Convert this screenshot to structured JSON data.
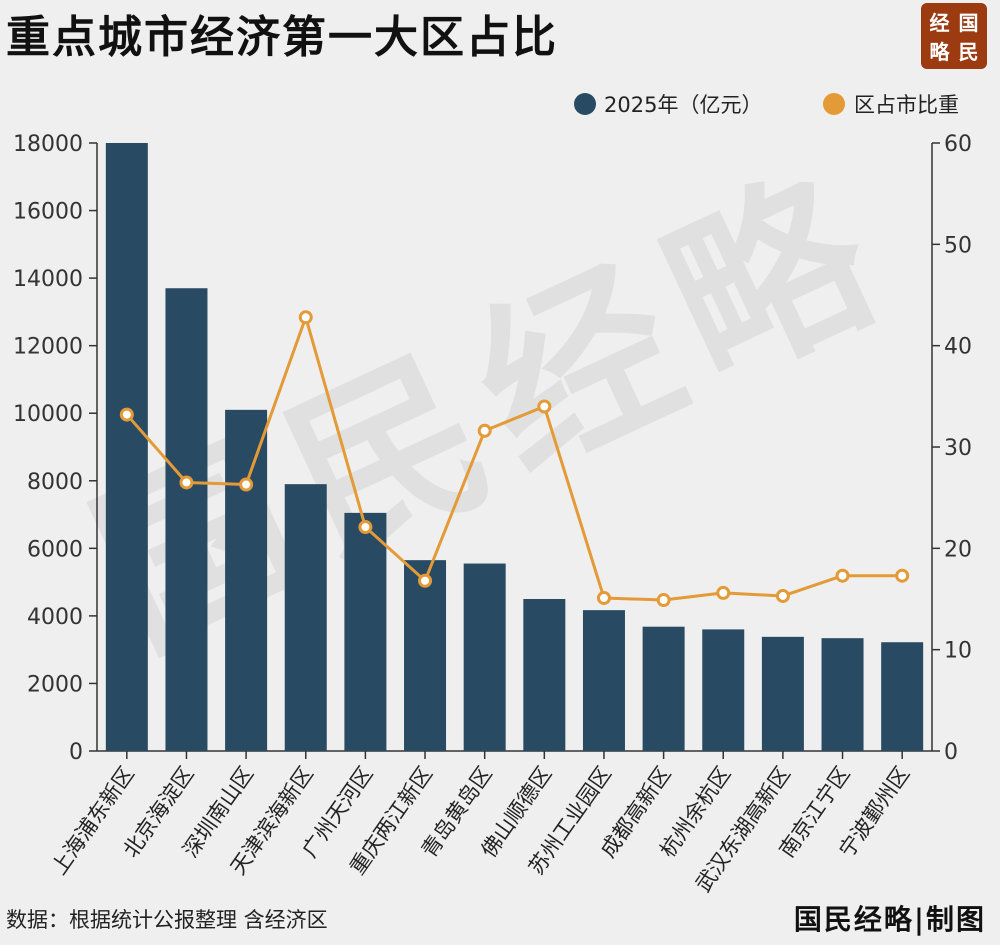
{
  "title": "重点城市经济第一大区占比",
  "logo_chars": [
    "经",
    "国",
    "略",
    "民"
  ],
  "source_note": "数据：根据统计公报整理 含经济区",
  "credit": "国民经略|制图",
  "watermark": "国民经略",
  "colors": {
    "bar": "#284a62",
    "line": "#e39a37",
    "point_fill": "#ffffff",
    "axis": "#333333",
    "logo_bg": "#9c3a12"
  },
  "chart_data": {
    "type": "bar",
    "categories": [
      "上海浦东新区",
      "北京海淀区",
      "深圳南山区",
      "天津滨海新区",
      "广州天河区",
      "重庆两江新区",
      "青岛黄岛区",
      "佛山顺德区",
      "苏州工业园区",
      "成都高新区",
      "杭州余杭区",
      "武汉东湖高新区",
      "南京江宁区",
      "宁波鄞州区"
    ],
    "series": [
      {
        "name": "2025年（亿元）",
        "type": "bar",
        "axis": "left",
        "values": [
          18000,
          13700,
          10100,
          7900,
          7050,
          5650,
          5550,
          4500,
          4170,
          3680,
          3600,
          3380,
          3340,
          3220
        ]
      },
      {
        "name": "区占市比重",
        "type": "line",
        "axis": "right",
        "values": [
          33.2,
          26.5,
          26.3,
          42.8,
          22.1,
          16.8,
          31.6,
          34.0,
          15.1,
          14.9,
          15.6,
          15.3,
          17.3,
          17.3
        ]
      }
    ],
    "ylim_left": [
      0,
      18000
    ],
    "yticks_left": [
      0,
      2000,
      4000,
      6000,
      8000,
      10000,
      12000,
      14000,
      16000,
      18000
    ],
    "ylim_right": [
      0,
      60
    ],
    "yticks_right": [
      0,
      10,
      20,
      30,
      40,
      50,
      60
    ],
    "legend_position": "top-right",
    "grid": false
  }
}
